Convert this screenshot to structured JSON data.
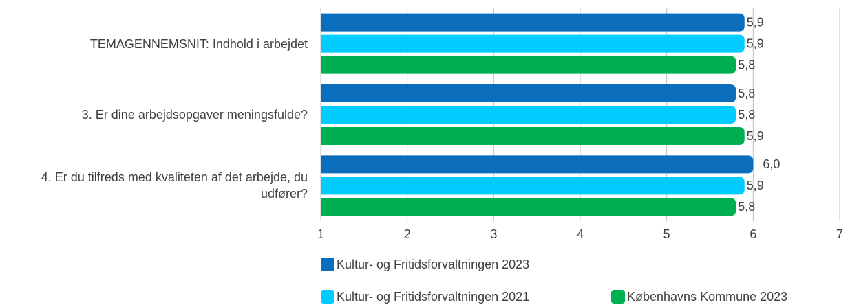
{
  "chart_data": {
    "type": "bar",
    "orientation": "horizontal",
    "categories": [
      "TEMAGENNEMSNIT: Indhold i arbejdet",
      "3. Er dine arbejdsopgaver meningsfulde?",
      "4. Er du tilfreds med kvaliteten af det arbejde, du udfører?"
    ],
    "series": [
      {
        "name": "Kultur- og Fritidsforvaltningen 2023",
        "color": "#0a6ebd",
        "values": [
          5.9,
          5.8,
          6.0
        ],
        "value_labels": [
          "5,9",
          "5,8",
          "6,0"
        ]
      },
      {
        "name": "Kultur- og Fritidsforvaltningen 2021",
        "color": "#00ccff",
        "values": [
          5.9,
          5.8,
          5.9
        ],
        "value_labels": [
          "5,9",
          "5,8",
          "5,9"
        ]
      },
      {
        "name": "Københavns Kommune 2023",
        "color": "#00b050",
        "values": [
          5.8,
          5.9,
          5.8
        ],
        "value_labels": [
          "5,8",
          "5,9",
          "5,8"
        ]
      }
    ],
    "xlim": [
      1,
      7
    ],
    "xticks": [
      1,
      2,
      3,
      4,
      5,
      6,
      7
    ],
    "grid": true,
    "legend": "bottom"
  }
}
